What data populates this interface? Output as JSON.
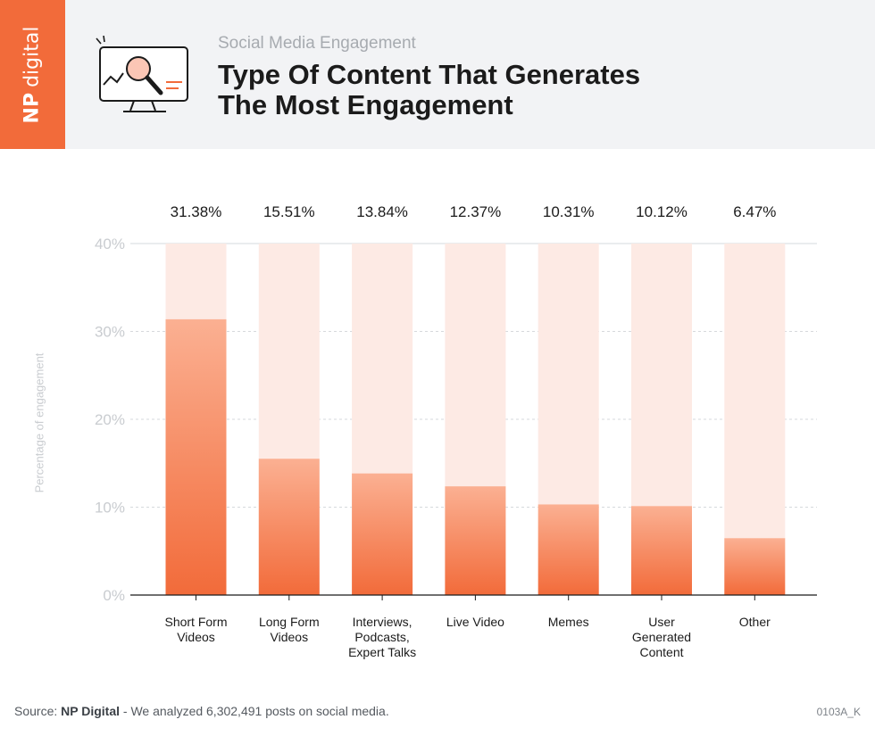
{
  "brand": {
    "label_bold": "NP",
    "label_rest": "digital",
    "color": "#f26b3a"
  },
  "header": {
    "subtitle": "Social Media Engagement",
    "title_line1": "Type Of Content That Generates",
    "title_line2": "The Most Engagement",
    "icon": "monitor-magnifier-icon"
  },
  "chart_data": {
    "type": "bar",
    "categories": [
      [
        "Short Form",
        "Videos"
      ],
      [
        "Long Form",
        "Videos"
      ],
      [
        "Interviews,",
        "Podcasts,",
        "Expert Talks"
      ],
      [
        "Live Video"
      ],
      [
        "Memes"
      ],
      [
        "User",
        "Generated",
        "Content"
      ],
      [
        "Other"
      ]
    ],
    "values": [
      31.38,
      15.51,
      13.84,
      12.37,
      10.31,
      10.12,
      6.47
    ],
    "value_labels": [
      "31.38%",
      "15.51%",
      "13.84%",
      "12.37%",
      "10.31%",
      "10.12%",
      "6.47%"
    ],
    "ylabel": "Percentage of engagement",
    "ylim": [
      0,
      40
    ],
    "yticks": [
      0,
      10,
      20,
      30,
      40
    ],
    "ytick_labels": [
      "0%",
      "10%",
      "20%",
      "30%",
      "40%"
    ],
    "grid": true,
    "colors": {
      "bar_top": "#fbb092",
      "bar_bottom": "#f26b3a",
      "track": "#fdeae4",
      "grid": "#d6d9dc"
    }
  },
  "footer": {
    "source_prefix": "Source: ",
    "source_brand": "NP Digital",
    "source_rest": " - We analyzed 6,302,491 posts on social media.",
    "code": "0103A_K"
  }
}
